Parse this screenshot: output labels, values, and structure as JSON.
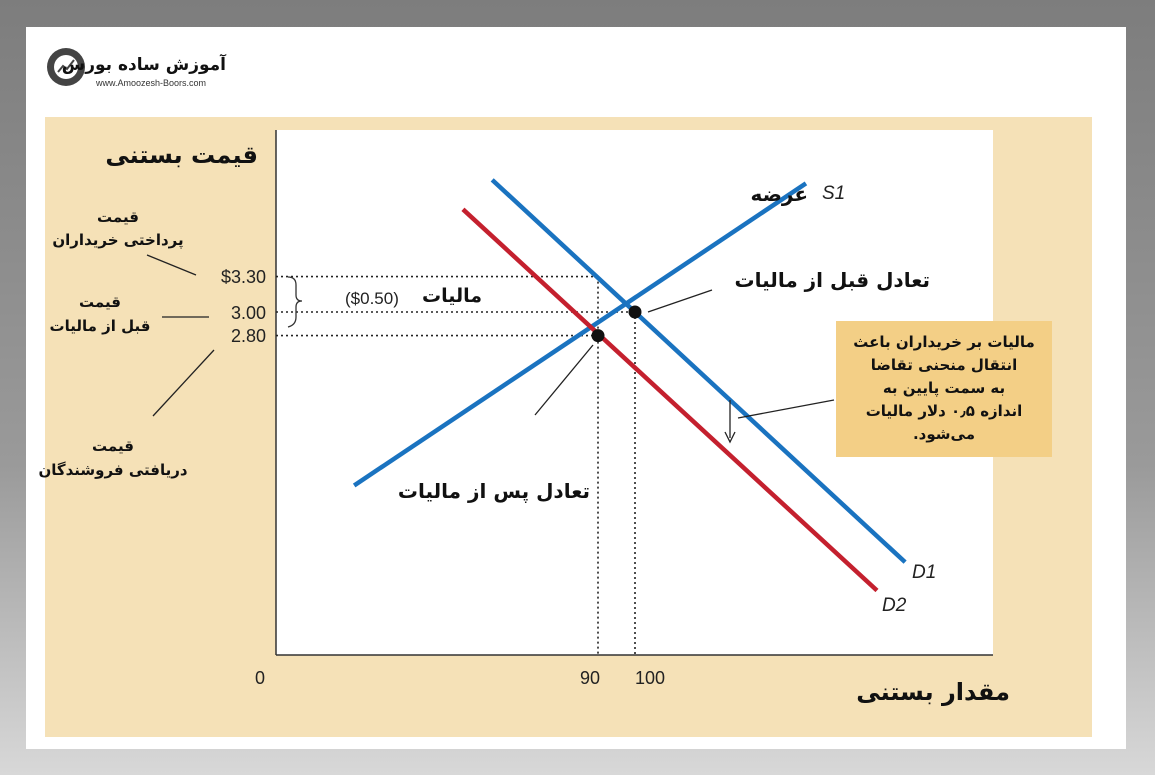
{
  "logo": {
    "name": "آموزش ساده بورس",
    "url": "www.Amoozesh-Boors.com"
  },
  "chart_data": {
    "type": "line",
    "ylabel": "قیمت بستنی",
    "xlabel": "مقدار بستنی",
    "x_ticks": [
      "0",
      "90",
      "100"
    ],
    "y_ticks": [
      "$3.30",
      "3.00",
      "2.80"
    ],
    "series": [
      {
        "name": "S1",
        "label": "عرضه",
        "color": "#1a73c0",
        "points": [
          [
            24.1,
            1.53
          ],
          [
            146.2,
            4.09
          ]
        ]
      },
      {
        "name": "D1",
        "color": "#1a73c0",
        "points": [
          [
            61.4,
            4.12
          ],
          [
            173,
            0.88
          ]
        ]
      },
      {
        "name": "D2",
        "color": "#c4202e",
        "points": [
          [
            53.5,
            3.87
          ],
          [
            165.4,
            0.64
          ]
        ]
      }
    ],
    "equilibria": [
      {
        "label": "تعادل قبل از مالیات",
        "q": 100,
        "p": 3.0
      },
      {
        "label": "تعادل پس از مالیات",
        "q": 90,
        "p": 2.8
      }
    ],
    "reference_prices": [
      3.3,
      3.0,
      2.8
    ],
    "tax_label": "مالیات",
    "tax_amount": "($0.50)",
    "left_annotations": [
      {
        "line1": "قیمت",
        "line2": "پرداختی خریداران"
      },
      {
        "line1": "قیمت",
        "line2": "قبل از مالیات"
      },
      {
        "line1": "قیمت",
        "line2": "دریافتی فروشندگان"
      }
    ],
    "note": [
      "مالیات بر خریداران باعث",
      "انتقال منحنی تقاضا",
      "به سمت پایین به",
      "اندازه ۰٫۵ دلار مالیات",
      "می‌شود."
    ]
  }
}
